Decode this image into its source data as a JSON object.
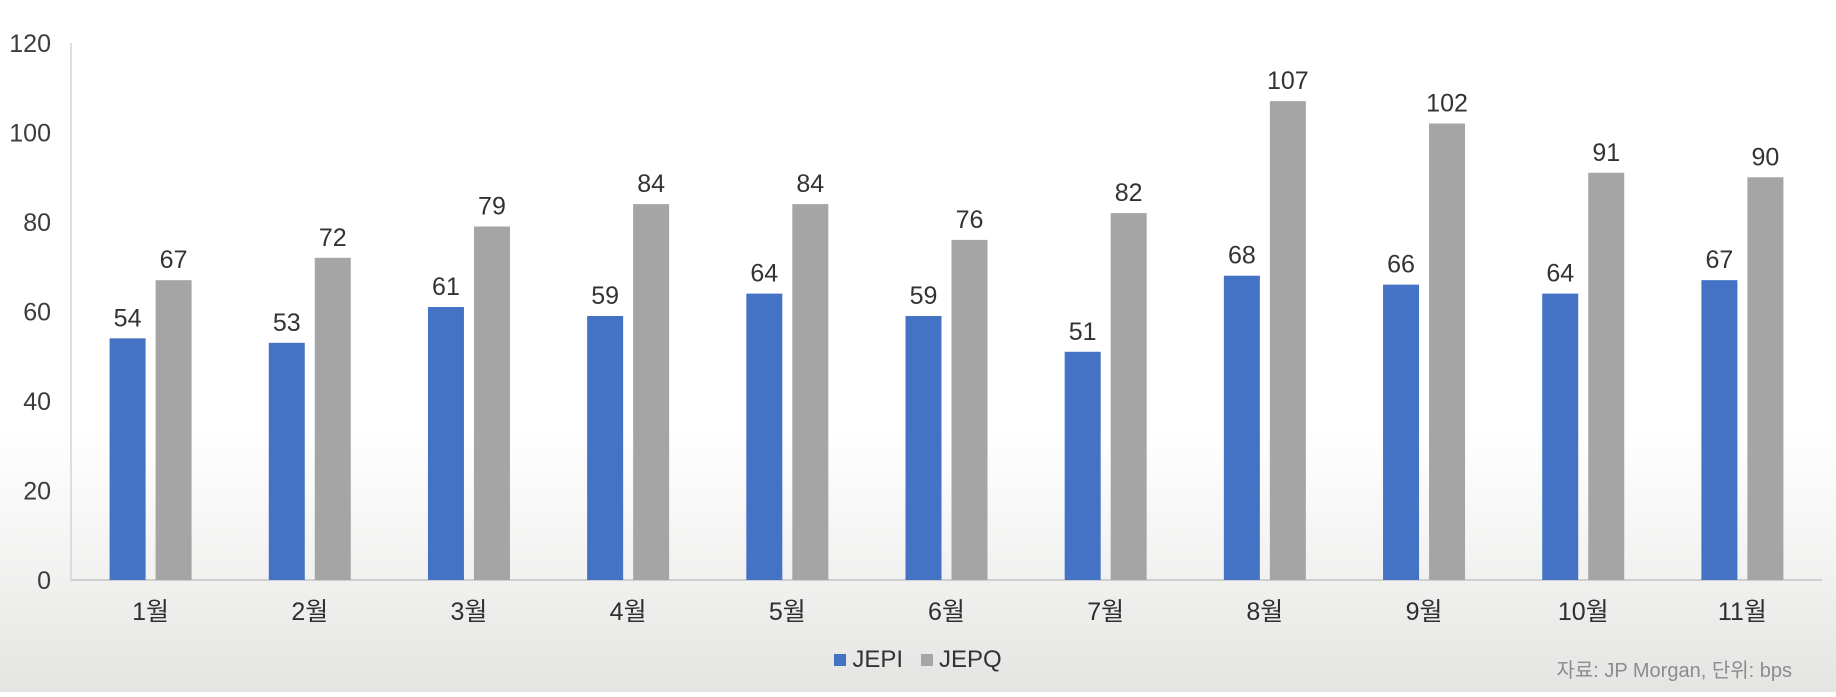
{
  "chart_data": {
    "type": "bar",
    "categories": [
      "1월",
      "2월",
      "3월",
      "4월",
      "5월",
      "6월",
      "7월",
      "8월",
      "9월",
      "10월",
      "11월"
    ],
    "series": [
      {
        "name": "JEPI",
        "color": "#4472c4",
        "values": [
          54,
          53,
          61,
          59,
          64,
          59,
          51,
          68,
          66,
          64,
          67
        ]
      },
      {
        "name": "JEPQ",
        "color": "#a5a5a5",
        "values": [
          67,
          72,
          79,
          84,
          84,
          76,
          82,
          107,
          102,
          91,
          90
        ]
      }
    ],
    "ylim": [
      0,
      120
    ],
    "yticks": [
      0,
      20,
      40,
      60,
      80,
      100,
      120
    ],
    "grid": false,
    "legend_position": "bottom-center",
    "data_labels": true
  },
  "source_note": "자료: JP Morgan, 단위: bps"
}
